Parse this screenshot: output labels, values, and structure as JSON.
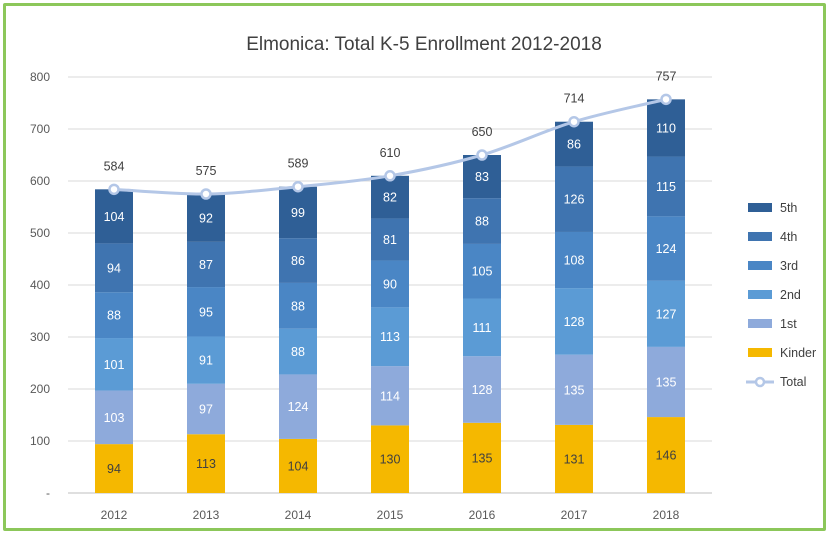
{
  "chart_data": {
    "type": "bar",
    "stacked": true,
    "title": "Elmonica: Total K-5 Enrollment 2012-2018",
    "categories": [
      "2012",
      "2013",
      "2014",
      "2015",
      "2016",
      "2017",
      "2018"
    ],
    "yticks": [
      "-",
      "100",
      "200",
      "300",
      "400",
      "500",
      "600",
      "700",
      "800"
    ],
    "ylim": [
      0,
      800
    ],
    "grid": true,
    "legend_position": "right",
    "series": [
      {
        "name": "Kinder",
        "color": "#f5b800",
        "values": [
          94,
          113,
          104,
          130,
          135,
          131,
          146
        ]
      },
      {
        "name": "1st",
        "color": "#8eaadb",
        "values": [
          103,
          97,
          124,
          114,
          128,
          135,
          135
        ]
      },
      {
        "name": "2nd",
        "color": "#5b9bd5",
        "values": [
          101,
          91,
          88,
          113,
          111,
          128,
          127
        ]
      },
      {
        "name": "3rd",
        "color": "#4a86c5",
        "values": [
          88,
          95,
          88,
          90,
          105,
          108,
          124
        ]
      },
      {
        "name": "4th",
        "color": "#3f74b0",
        "values": [
          94,
          87,
          86,
          81,
          88,
          126,
          115
        ]
      },
      {
        "name": "5th",
        "color": "#2f5f96",
        "values": [
          104,
          92,
          99,
          82,
          83,
          86,
          110
        ]
      }
    ],
    "total": {
      "name": "Total",
      "type": "line",
      "color": "#b4c7e7",
      "values": [
        584,
        575,
        589,
        610,
        650,
        714,
        757
      ]
    }
  }
}
